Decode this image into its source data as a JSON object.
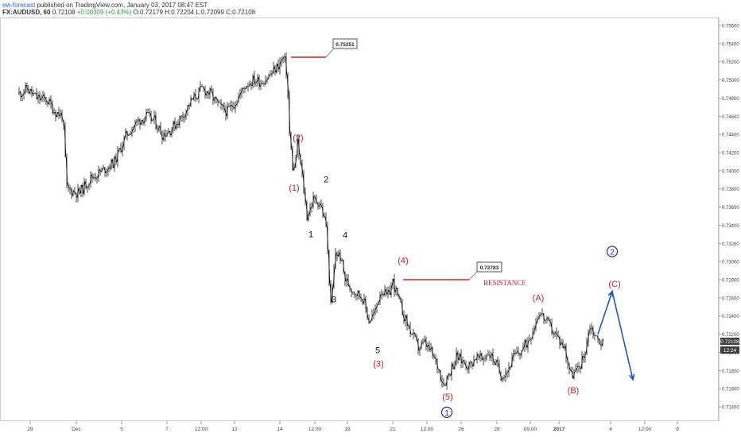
{
  "header": {
    "author": "ew-forecast",
    "published": "published on TradingView.com, January 03, 2017 08:47 EST",
    "symbol": "FX:AUDUSD, 60",
    "last": "0.72108",
    "change": "+0.00309 (+0.43%)",
    "open": "O:0.72179",
    "high": "H:0.72204",
    "low": "L:0.72099",
    "close": "C:0.72108"
  },
  "chart_data": {
    "type": "candlestick",
    "ylim": [
      0.7135,
      0.7565
    ],
    "y_ticks": [
      "0.75600",
      "0.75400",
      "0.75200",
      "0.75000",
      "0.74800",
      "0.74600",
      "0.74400",
      "0.74200",
      "0.74000",
      "0.73800",
      "0.73600",
      "0.73400",
      "0.73200",
      "0.73000",
      "0.72800",
      "0.72600",
      "0.72400",
      "0.72200",
      "0.72000",
      "0.71800",
      "0.71600",
      "0.71400"
    ],
    "x_ticks": [
      "29",
      "Dec",
      "5",
      "7",
      "12:00",
      "12",
      "14",
      "12:00",
      "19",
      "21",
      "12:00",
      "26",
      "28",
      "09:00",
      "2017",
      "4",
      "12:00",
      "9"
    ],
    "price_path": [
      [
        0,
        0.7485
      ],
      [
        10,
        0.749
      ],
      [
        22,
        0.748
      ],
      [
        35,
        0.7478
      ],
      [
        45,
        0.7465
      ],
      [
        55,
        0.746
      ],
      [
        60,
        0.738
      ],
      [
        75,
        0.7375
      ],
      [
        90,
        0.7392
      ],
      [
        105,
        0.74
      ],
      [
        120,
        0.741
      ],
      [
        135,
        0.744
      ],
      [
        150,
        0.7455
      ],
      [
        160,
        0.746
      ],
      [
        170,
        0.7455
      ],
      [
        180,
        0.744
      ],
      [
        190,
        0.7445
      ],
      [
        205,
        0.746
      ],
      [
        215,
        0.7475
      ],
      [
        230,
        0.749
      ],
      [
        240,
        0.7485
      ],
      [
        252,
        0.747
      ],
      [
        262,
        0.7465
      ],
      [
        275,
        0.748
      ],
      [
        285,
        0.7495
      ],
      [
        295,
        0.75
      ],
      [
        305,
        0.7498
      ],
      [
        315,
        0.7505
      ],
      [
        325,
        0.7515
      ],
      [
        333,
        0.7525
      ],
      [
        337,
        0.7505
      ],
      [
        340,
        0.744
      ],
      [
        345,
        0.7395
      ],
      [
        350,
        0.743
      ],
      [
        355,
        0.74
      ],
      [
        362,
        0.735
      ],
      [
        370,
        0.7368
      ],
      [
        378,
        0.7365
      ],
      [
        386,
        0.734
      ],
      [
        392,
        0.725
      ],
      [
        398,
        0.731
      ],
      [
        404,
        0.7305
      ],
      [
        410,
        0.728
      ],
      [
        418,
        0.727
      ],
      [
        425,
        0.7265
      ],
      [
        432,
        0.726
      ],
      [
        440,
        0.7235
      ],
      [
        448,
        0.7245
      ],
      [
        455,
        0.727
      ],
      [
        463,
        0.726
      ],
      [
        470,
        0.7278
      ],
      [
        478,
        0.7255
      ],
      [
        486,
        0.7235
      ],
      [
        494,
        0.722
      ],
      [
        502,
        0.7205
      ],
      [
        510,
        0.721
      ],
      [
        518,
        0.72
      ],
      [
        526,
        0.7185
      ],
      [
        534,
        0.7165
      ],
      [
        542,
        0.718
      ],
      [
        550,
        0.7195
      ],
      [
        558,
        0.719
      ],
      [
        566,
        0.7185
      ],
      [
        574,
        0.7195
      ],
      [
        582,
        0.7192
      ],
      [
        590,
        0.72
      ],
      [
        598,
        0.719
      ],
      [
        606,
        0.7175
      ],
      [
        614,
        0.718
      ],
      [
        622,
        0.7195
      ],
      [
        630,
        0.72
      ],
      [
        638,
        0.721
      ],
      [
        646,
        0.7225
      ],
      [
        654,
        0.7245
      ],
      [
        662,
        0.7235
      ],
      [
        670,
        0.7225
      ],
      [
        678,
        0.7215
      ],
      [
        686,
        0.7205
      ],
      [
        694,
        0.7175
      ],
      [
        702,
        0.718
      ],
      [
        710,
        0.7195
      ],
      [
        718,
        0.723
      ],
      [
        726,
        0.7215
      ],
      [
        734,
        0.721
      ]
    ],
    "annotations": {
      "high_box": "0.75251",
      "resistance_box": "0.72783",
      "resistance_text": "RESISTANCE",
      "last_price": "0.72108",
      "countdown": "12:24",
      "labels": [
        {
          "text": "(1)",
          "x": 370,
          "price": 0.7378,
          "color": "#c0202a"
        },
        {
          "text": "(2)",
          "x": 375,
          "price": 0.7433,
          "color": "#c0202a"
        },
        {
          "text": "2",
          "x": 410,
          "price": 0.7387,
          "color": "#111111"
        },
        {
          "text": "1",
          "x": 391,
          "price": 0.7327,
          "color": "#111111"
        },
        {
          "text": "4",
          "x": 434,
          "price": 0.7326,
          "color": "#111111"
        },
        {
          "text": "3",
          "x": 420,
          "price": 0.7255,
          "color": "#111111"
        },
        {
          "text": "(4)",
          "x": 507,
          "price": 0.7298,
          "color": "#c0202a"
        },
        {
          "text": "5",
          "x": 475,
          "price": 0.7199,
          "color": "#111111"
        },
        {
          "text": "(3)",
          "x": 476,
          "price": 0.7184,
          "color": "#c0202a"
        },
        {
          "text": "(A)",
          "x": 677,
          "price": 0.7257,
          "color": "#c0202a"
        },
        {
          "text": "(C)",
          "x": 773,
          "price": 0.7272,
          "color": "#c0202a"
        },
        {
          "text": "(B)",
          "x": 721,
          "price": 0.7155,
          "color": "#c0202a"
        },
        {
          "text": "(5)",
          "x": 563,
          "price": 0.7148,
          "color": "#c0202a"
        }
      ],
      "circled": [
        {
          "text": "1",
          "x": 562,
          "price": 0.7134,
          "color": "#1f2f9e"
        },
        {
          "text": "2",
          "x": 770,
          "price": 0.7311,
          "color": "#1f2f9e"
        }
      ],
      "projection": [
        [
          752,
          0.722
        ],
        [
          770,
          0.7267
        ],
        [
          796,
          0.717
        ]
      ]
    }
  }
}
